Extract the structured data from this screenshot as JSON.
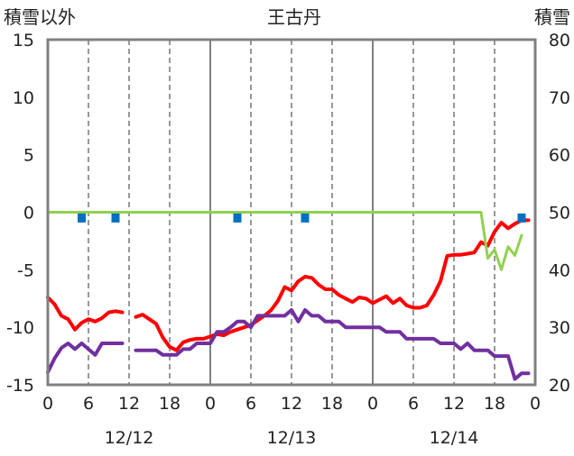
{
  "chart_data": {
    "type": "line",
    "title": "王古丹",
    "left_axis_label": "積雪以外",
    "right_axis_label": "積雪",
    "left_ylim": [
      -15,
      15
    ],
    "left_yticks": [
      15,
      10,
      5,
      0,
      -5,
      -10,
      -15
    ],
    "right_ylim": [
      20,
      80
    ],
    "right_yticks": [
      80,
      70,
      60,
      50,
      40,
      30,
      20
    ],
    "xlim": [
      0,
      72
    ],
    "x_unit": "hours from 12/12 00:00",
    "x_tick_values": [
      0,
      6,
      12,
      18,
      24,
      30,
      36,
      42,
      48,
      54,
      60,
      66,
      72
    ],
    "x_tick_labels": [
      "0",
      "6",
      "12",
      "18",
      "0",
      "6",
      "12",
      "18",
      "0",
      "6",
      "12",
      "18",
      "0"
    ],
    "date_labels": [
      {
        "x": 12,
        "text": "12/12"
      },
      {
        "x": 36,
        "text": "12/13"
      },
      {
        "x": 60,
        "text": "12/14"
      }
    ],
    "grid": {
      "day_lines": [
        24,
        48
      ],
      "dashed": [
        6,
        12,
        18,
        30,
        36,
        42,
        54,
        60,
        66
      ]
    },
    "colors": {
      "red": "#ff0000",
      "purple": "#7030a0",
      "green": "#92d050",
      "blue": "#0070c0",
      "frame": "#808080"
    },
    "series": [
      {
        "color": "red",
        "axis": "left",
        "segments": [
          [
            [
              0,
              -7.4
            ],
            [
              1,
              -8
            ],
            [
              2,
              -9
            ],
            [
              3,
              -9.3
            ],
            [
              4,
              -10.2
            ],
            [
              5,
              -9.6
            ],
            [
              6,
              -9.3
            ],
            [
              7,
              -9.5
            ],
            [
              8,
              -9.2
            ],
            [
              9,
              -8.7
            ],
            [
              10,
              -8.6
            ],
            [
              11,
              -8.7
            ]
          ],
          [
            [
              13,
              -9.1
            ],
            [
              14,
              -8.9
            ],
            [
              15,
              -9.3
            ],
            [
              16,
              -9.7
            ],
            [
              17,
              -10.9
            ],
            [
              18,
              -11.7
            ],
            [
              19,
              -12
            ],
            [
              20,
              -11.3
            ],
            [
              21,
              -11.1
            ],
            [
              22,
              -11
            ],
            [
              23,
              -11
            ],
            [
              24,
              -10.8
            ],
            [
              25,
              -10.6
            ],
            [
              26,
              -10.7
            ],
            [
              27,
              -10.4
            ],
            [
              28,
              -10.2
            ],
            [
              29,
              -10
            ],
            [
              30,
              -9.8
            ],
            [
              31,
              -9.4
            ],
            [
              32,
              -9
            ],
            [
              33,
              -8.5
            ],
            [
              34,
              -7.7
            ],
            [
              35,
              -6.5
            ],
            [
              36,
              -6.8
            ],
            [
              37,
              -6
            ],
            [
              38,
              -5.6
            ],
            [
              39,
              -5.7
            ],
            [
              40,
              -6.3
            ],
            [
              41,
              -6.7
            ],
            [
              42,
              -6.7
            ],
            [
              43,
              -7.2
            ],
            [
              44,
              -7.5
            ],
            [
              45,
              -7.8
            ],
            [
              46,
              -7.4
            ],
            [
              47,
              -7.5
            ],
            [
              48,
              -7.9
            ],
            [
              49,
              -7.6
            ],
            [
              50,
              -7.3
            ],
            [
              51,
              -7.9
            ],
            [
              52,
              -7.5
            ],
            [
              53,
              -8.1
            ],
            [
              54,
              -8.3
            ],
            [
              55,
              -8.3
            ],
            [
              56,
              -8.1
            ],
            [
              57,
              -7.2
            ],
            [
              58,
              -6
            ],
            [
              59,
              -3.8
            ],
            [
              60,
              -3.7
            ],
            [
              61,
              -3.7
            ],
            [
              62,
              -3.6
            ],
            [
              63,
              -3.5
            ],
            [
              64,
              -2.6
            ],
            [
              65,
              -2.9
            ],
            [
              66,
              -1.7
            ],
            [
              67,
              -0.9
            ],
            [
              68,
              -1.4
            ],
            [
              69,
              -1
            ],
            [
              70,
              -0.7
            ],
            [
              71,
              -0.7
            ]
          ]
        ]
      },
      {
        "color": "purple",
        "axis": "left",
        "segments": [
          [
            [
              0,
              -13.9
            ],
            [
              1,
              -12.7
            ],
            [
              2,
              -11.8
            ],
            [
              3,
              -11.4
            ],
            [
              4,
              -11.9
            ],
            [
              5,
              -11.4
            ],
            [
              6,
              -11.9
            ],
            [
              7,
              -12.4
            ],
            [
              8,
              -11.4
            ],
            [
              9,
              -11.4
            ],
            [
              10,
              -11.4
            ],
            [
              11,
              -11.4
            ]
          ],
          [
            [
              13,
              -12
            ],
            [
              14,
              -12
            ],
            [
              15,
              -12
            ],
            [
              16,
              -12
            ],
            [
              17,
              -12.4
            ],
            [
              18,
              -12.4
            ],
            [
              19,
              -12.4
            ],
            [
              20,
              -11.9
            ],
            [
              21,
              -11.9
            ],
            [
              22,
              -11.4
            ],
            [
              23,
              -11.4
            ],
            [
              24,
              -11.4
            ],
            [
              25,
              -10.4
            ],
            [
              26,
              -10.4
            ],
            [
              27,
              -10
            ],
            [
              28,
              -9.5
            ],
            [
              29,
              -9.5
            ],
            [
              30,
              -10
            ],
            [
              31,
              -9
            ],
            [
              32,
              -9
            ],
            [
              33,
              -9
            ],
            [
              34,
              -9
            ],
            [
              35,
              -9
            ],
            [
              36,
              -8.5
            ],
            [
              37,
              -9.5
            ],
            [
              38,
              -8.5
            ],
            [
              39,
              -9
            ],
            [
              40,
              -9
            ],
            [
              41,
              -9.5
            ],
            [
              42,
              -9.5
            ],
            [
              43,
              -9.5
            ],
            [
              44,
              -10
            ],
            [
              45,
              -10
            ],
            [
              46,
              -10
            ],
            [
              47,
              -10
            ],
            [
              48,
              -10
            ],
            [
              49,
              -10
            ],
            [
              50,
              -10.4
            ],
            [
              51,
              -10.4
            ],
            [
              52,
              -10.4
            ],
            [
              53,
              -11
            ],
            [
              54,
              -11
            ],
            [
              55,
              -11
            ],
            [
              56,
              -11
            ],
            [
              57,
              -11
            ],
            [
              58,
              -11.4
            ],
            [
              59,
              -11.4
            ],
            [
              60,
              -11.4
            ],
            [
              61,
              -11.9
            ],
            [
              62,
              -11.4
            ],
            [
              63,
              -12
            ],
            [
              64,
              -12
            ],
            [
              65,
              -12
            ],
            [
              66,
              -12.5
            ],
            [
              67,
              -12.5
            ],
            [
              68,
              -12.5
            ],
            [
              69,
              -14.5
            ],
            [
              70,
              -14
            ],
            [
              71,
              -14
            ]
          ]
        ]
      },
      {
        "color": "green",
        "axis": "right",
        "segments": [
          [
            [
              0,
              50
            ],
            [
              62,
              50
            ],
            [
              64,
              50
            ],
            [
              65,
              42
            ],
            [
              66,
              43.5
            ],
            [
              67,
              40
            ],
            [
              68,
              44
            ],
            [
              69,
              42.5
            ],
            [
              70,
              46
            ]
          ]
        ]
      },
      {
        "color": "blue",
        "axis": "left",
        "kind": "markers",
        "points": [
          [
            5,
            -0.5
          ],
          [
            10,
            -0.5
          ],
          [
            28,
            -0.5
          ],
          [
            38,
            -0.5
          ],
          [
            70,
            -0.5
          ]
        ]
      }
    ]
  }
}
